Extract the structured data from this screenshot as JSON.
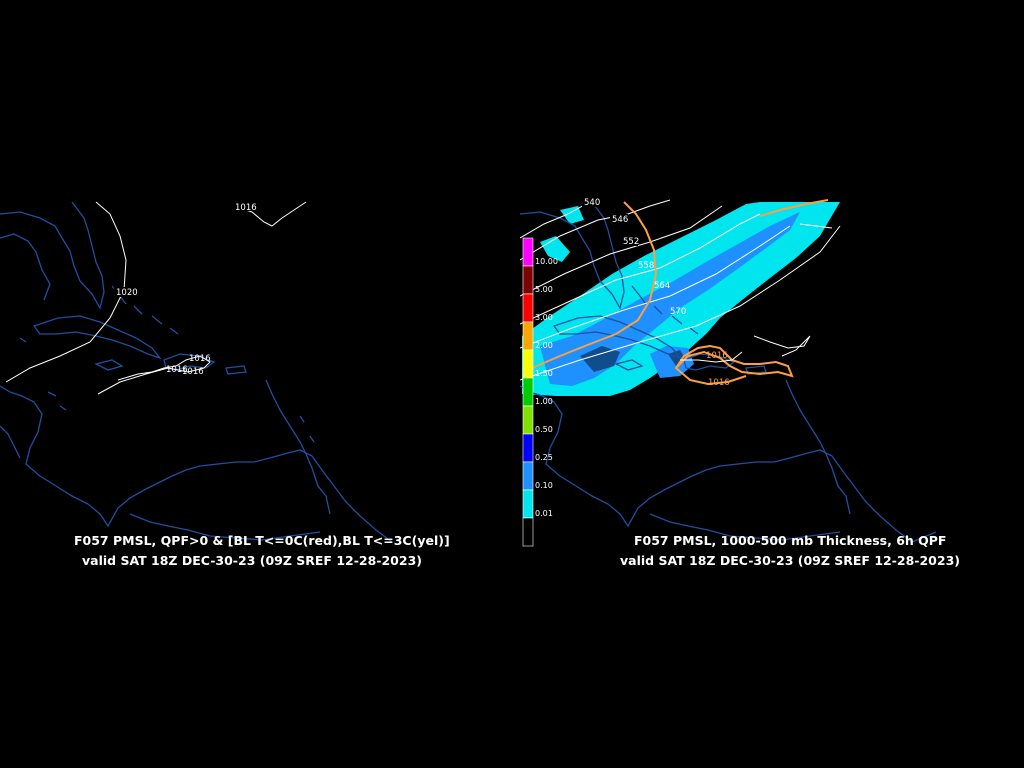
{
  "left_panel": {
    "title": "F057 PMSL, QPF>0 & [BL T<=0C(red),BL T<=3C(yel)]",
    "valid": "valid SAT 18Z DEC-30-23 (09Z SREF 12-28-2023)",
    "isobar_labels": [
      "1016",
      "1020",
      "1016",
      "1016",
      "1016"
    ]
  },
  "right_panel": {
    "title": "F057 PMSL, 1000-500 mb Thickness, 6h QPF",
    "valid": "valid SAT 18Z DEC-30-23 (09Z SREF 12-28-2023)",
    "thickness_labels": [
      "540",
      "546",
      "552",
      "558",
      "564",
      "570"
    ],
    "isobar_labels": [
      "1016",
      "1016"
    ],
    "qpf_legend": [
      {
        "label": "10.00",
        "color": "#ff00ff"
      },
      {
        "label": "5.00",
        "color": "#7f0000"
      },
      {
        "label": "3.00",
        "color": "#ff0000"
      },
      {
        "label": "2.00",
        "color": "#ffa500"
      },
      {
        "label": "1.50",
        "color": "#ffff00"
      },
      {
        "label": "1.00",
        "color": "#00cc00"
      },
      {
        "label": "0.50",
        "color": "#80e000"
      },
      {
        "label": "0.25",
        "color": "#0000ff"
      },
      {
        "label": "0.10",
        "color": "#1e90ff"
      },
      {
        "label": "0.01",
        "color": "#00e5ee"
      },
      {
        "label": "",
        "color": "#000000"
      }
    ]
  },
  "colors": {
    "coastline": "#1f4fa0",
    "isobar": "#ffffff",
    "thickness": "#ff9f40",
    "qpf_light": "#00e5ee",
    "qpf_mid": "#1e90ff",
    "background": "#000000"
  }
}
